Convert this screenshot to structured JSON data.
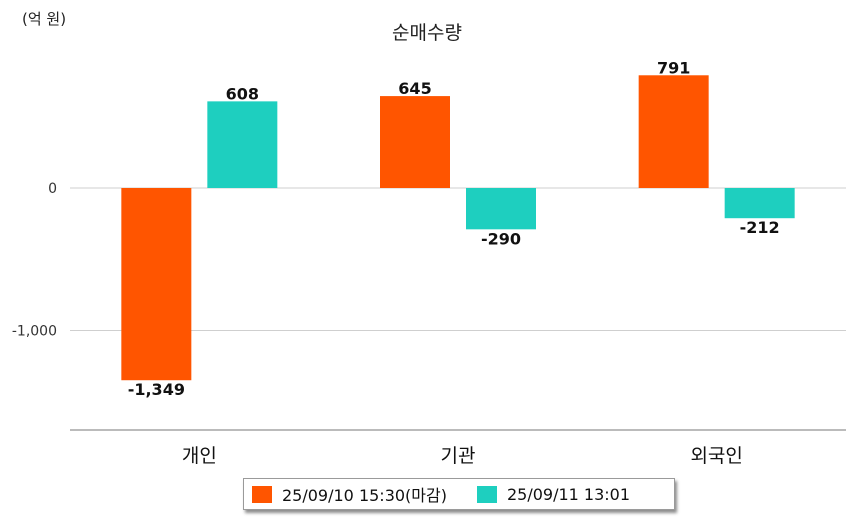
{
  "chart_data": {
    "type": "bar",
    "title": "순매수량",
    "unit_label": "(억 원)",
    "categories": [
      "개인",
      "기관",
      "외국인"
    ],
    "series": [
      {
        "name": "25/09/10 15:30(마감)",
        "color": "#FF5500",
        "values": [
          -1349,
          645,
          791
        ]
      },
      {
        "name": "25/09/11 13:01",
        "color": "#1ECFBF",
        "values": [
          608,
          -290,
          -212
        ]
      }
    ],
    "value_labels": [
      [
        "-1,349",
        "645",
        "791"
      ],
      [
        "608",
        "-290",
        "-212"
      ]
    ],
    "y_ticks": [
      0,
      -1000
    ],
    "y_tick_labels": [
      "0",
      "-1,000"
    ],
    "ylim": [
      -1700,
      960
    ],
    "grid": true,
    "legend_position": "bottom-center"
  }
}
